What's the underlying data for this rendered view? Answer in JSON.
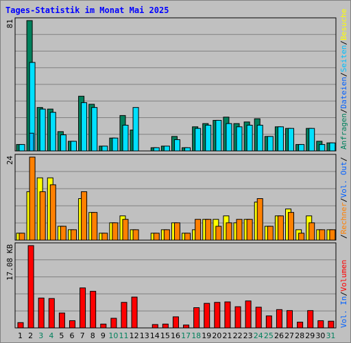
{
  "title": "Tages-Statistik im Monat Mai 2025",
  "colors": {
    "background": "#c0c0c0",
    "title": "#0000ff",
    "grid": "#808080",
    "anfragen": "#00805c",
    "dateien": "#00e0ff",
    "seiten": "#00c0ff",
    "besuche": "#ffff00",
    "rechner": "#ff8000",
    "volumen": "#ff0000",
    "weekend_label": "#00805c"
  },
  "right_labels": {
    "panel1": [
      {
        "text": "Anfragen",
        "color": "#00805c"
      },
      {
        "text": "/",
        "color": "#000000"
      },
      {
        "text": "Dateien",
        "color": "#0060ff"
      },
      {
        "text": "/",
        "color": "#000000"
      },
      {
        "text": "Seiten",
        "color": "#00c0ff"
      },
      {
        "text": "/",
        "color": "#000000"
      },
      {
        "text": "Besuche",
        "color": "#ffff00"
      }
    ],
    "panel2": [
      {
        "text": "/",
        "color": "#000000"
      },
      {
        "text": "Rechner",
        "color": "#ff8000"
      },
      {
        "text": "/",
        "color": "#000000"
      },
      {
        "text": "Vol. Out",
        "color": "#0060ff"
      },
      {
        "text": "/",
        "color": "#000000"
      }
    ],
    "panel3": [
      {
        "text": "Vol. In",
        "color": "#0060ff"
      },
      {
        "text": "/",
        "color": "#000000"
      },
      {
        "text": "Volumen",
        "color": "#ff0000"
      }
    ]
  },
  "chart_data": [
    {
      "type": "bar",
      "panel": "top",
      "max_label": "81",
      "ylim": [
        0,
        81
      ],
      "categories": [
        "1",
        "2",
        "3",
        "4",
        "5",
        "6",
        "7",
        "8",
        "9",
        "10",
        "11",
        "12",
        "13",
        "14",
        "15",
        "16",
        "17",
        "18",
        "19",
        "20",
        "21",
        "22",
        "23",
        "24",
        "25",
        "26",
        "27",
        "28",
        "29",
        "30",
        "31"
      ],
      "weekend_days": [
        "3",
        "4",
        "10",
        "11",
        "17",
        "18",
        "24",
        "25",
        "31"
      ],
      "series": [
        {
          "name": "Anfragen",
          "values": [
            4,
            81,
            27,
            26,
            12,
            6,
            34,
            29,
            3,
            8,
            22,
            13,
            0,
            2,
            3,
            9,
            2,
            15,
            17,
            19,
            21,
            17,
            18,
            20,
            9,
            15,
            14,
            4,
            14,
            6,
            5
          ]
        },
        {
          "name": "Dateien",
          "values": [
            4,
            55,
            26,
            24,
            10,
            6,
            30,
            27,
            3,
            8,
            16,
            27,
            0,
            2,
            3,
            7,
            2,
            14,
            16,
            19,
            17,
            15,
            16,
            16,
            9,
            15,
            14,
            4,
            14,
            4,
            5
          ]
        },
        {
          "name": "Seiten",
          "values": [
            0,
            11,
            0,
            0,
            0,
            0,
            0,
            0,
            0,
            0,
            0,
            0,
            0,
            0,
            0,
            0,
            0,
            0,
            0,
            0,
            0,
            0,
            0,
            0,
            0,
            0,
            0,
            0,
            0,
            0,
            0
          ]
        }
      ]
    },
    {
      "type": "bar",
      "panel": "middle",
      "max_label": "24",
      "ylim": [
        0,
        24
      ],
      "categories": [
        "1",
        "2",
        "3",
        "4",
        "5",
        "6",
        "7",
        "8",
        "9",
        "10",
        "11",
        "12",
        "13",
        "14",
        "15",
        "16",
        "17",
        "18",
        "19",
        "20",
        "21",
        "22",
        "23",
        "24",
        "25",
        "26",
        "27",
        "28",
        "29",
        "30",
        "31"
      ],
      "series": [
        {
          "name": "Besuche",
          "values": [
            2,
            14,
            18,
            18,
            4,
            3,
            12,
            8,
            2,
            5,
            7,
            3,
            0,
            2,
            3,
            5,
            2,
            3,
            6,
            6,
            7,
            5,
            6,
            11,
            4,
            7,
            9,
            3,
            7,
            3,
            3
          ]
        },
        {
          "name": "Rechner",
          "values": [
            2,
            24,
            14,
            16,
            4,
            3,
            14,
            8,
            2,
            5,
            6,
            3,
            0,
            2,
            3,
            5,
            2,
            6,
            6,
            4,
            5,
            6,
            6,
            12,
            4,
            7,
            8,
            2,
            5,
            3,
            3
          ]
        }
      ]
    },
    {
      "type": "bar",
      "panel": "bottom",
      "max_label": "17.08 KB",
      "ylim": [
        0,
        17.08
      ],
      "categories": [
        "1",
        "2",
        "3",
        "4",
        "5",
        "6",
        "7",
        "8",
        "9",
        "10",
        "11",
        "12",
        "13",
        "14",
        "15",
        "16",
        "17",
        "18",
        "19",
        "20",
        "21",
        "22",
        "23",
        "24",
        "25",
        "26",
        "27",
        "28",
        "29",
        "30",
        "31"
      ],
      "series": [
        {
          "name": "Volumen",
          "values": [
            1.1,
            17.08,
            6.2,
            6.1,
            3.1,
            1.5,
            8.3,
            7.6,
            0.8,
            2.0,
            5.3,
            6.4,
            0,
            0.7,
            0.8,
            2.3,
            0.6,
            4.2,
            5.1,
            5.3,
            5.4,
            4.4,
            5.6,
            4.3,
            2.5,
            3.8,
            3.6,
            1.2,
            3.6,
            1.5,
            1.4
          ]
        }
      ]
    }
  ]
}
